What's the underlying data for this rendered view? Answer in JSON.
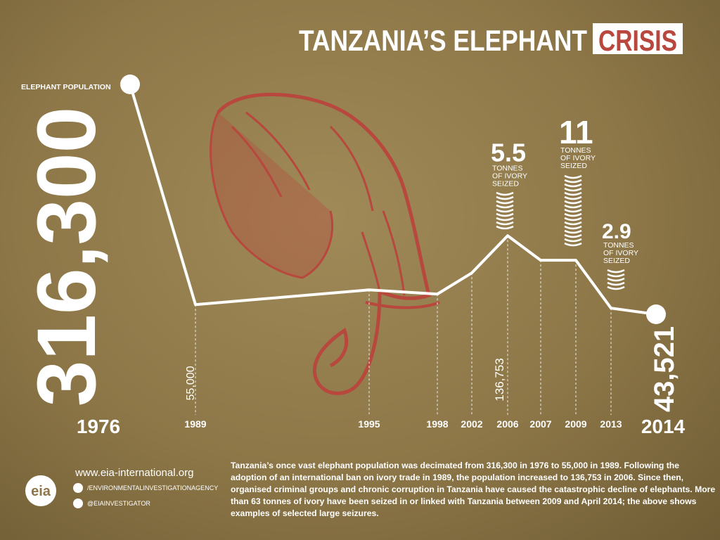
{
  "title": "TANZANIA’S ELEPHANT",
  "title_highlight": "CRISIS",
  "chart_data": {
    "type": "line",
    "y_label": "ELEPHANT POPULATION",
    "color": "#ffffff",
    "categories": [
      "1976",
      "1989",
      "1995",
      "1998",
      "2002",
      "2006",
      "2007",
      "2009",
      "2013",
      "2014"
    ],
    "values": [
      316300,
      55000,
      72500,
      67500,
      92600,
      136753,
      107600,
      107600,
      50800,
      43521
    ],
    "value_labels": [
      "316,300",
      "55,000",
      null,
      null,
      null,
      "136,753",
      null,
      null,
      null,
      "43,521"
    ],
    "annotations": [
      {
        "category": "2006",
        "value": 5.5,
        "text": [
          "TONNES",
          "OF IVORY",
          "SEIZED"
        ]
      },
      {
        "category": "2009",
        "value": 11,
        "text": [
          "TONNES",
          "OF IVORY",
          "SEIZED"
        ]
      },
      {
        "category": "2013",
        "value": 2.9,
        "text": [
          "TONNES",
          "OF IVORY",
          "SEIZED"
        ]
      }
    ]
  },
  "footer": {
    "website": "www.eia-international.org",
    "logo": "eia",
    "facebook": "/ENVIRONMENTALINVESTIGATIONAGENCY",
    "twitter": "@EIAINVESTIGATOR",
    "text": "Tanzania’s once vast elephant population was decimated from 316,300 in 1976 to 55,000 in 1989. Following the adoption of an international ban on ivory trade in 1989, the population increased to 136,753 in 2006. Since then, organised criminal groups and chronic corruption in Tanzania have caused the catastrophic decline of elephants. More than 63 tonnes of ivory have been seized in or linked with Tanzania between 2009 and April 2014; the above shows examples of selected large seizures."
  }
}
